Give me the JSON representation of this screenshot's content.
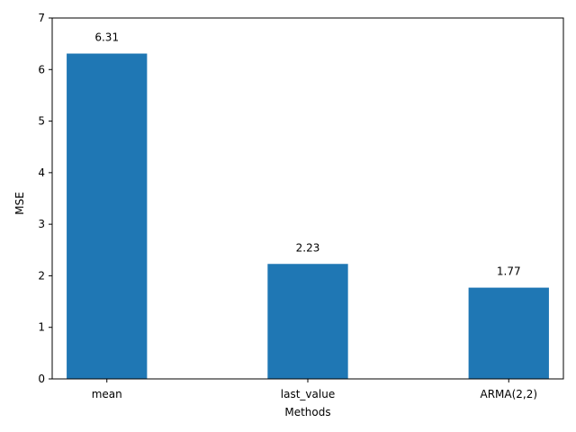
{
  "chart_data": {
    "type": "bar",
    "categories": [
      "mean",
      "last_value",
      "ARMA(2,2)"
    ],
    "values": [
      6.31,
      2.23,
      1.77
    ],
    "value_labels": [
      "6.31",
      "2.23",
      "1.77"
    ],
    "title": "",
    "xlabel": "Methods",
    "ylabel": "MSE",
    "ylim": [
      0,
      7
    ],
    "yticks": [
      "0",
      "1",
      "2",
      "3",
      "4",
      "5",
      "6",
      "7"
    ],
    "grid": false,
    "legend": "none",
    "bar_color": "#1f77b4"
  }
}
